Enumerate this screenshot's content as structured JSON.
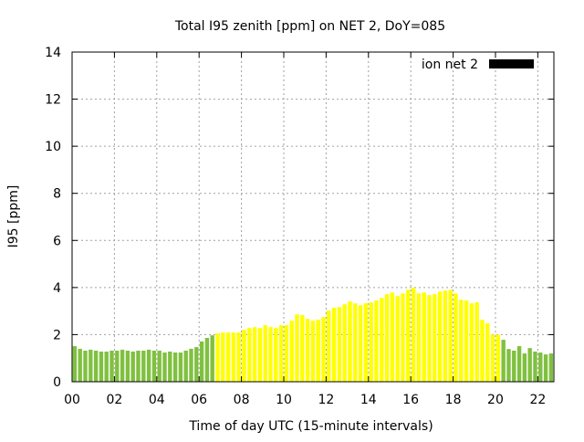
{
  "chart_data": {
    "type": "bar",
    "title": "Total I95 zenith [ppm] on NET 2, DoY=085",
    "xlabel": "Time of day UTC (15-minute intervals)",
    "ylabel": "I95 [ppm]",
    "xlim": [
      0,
      22.76
    ],
    "ylim": [
      0,
      14
    ],
    "grid": true,
    "x_ticks": [
      "00",
      "02",
      "04",
      "06",
      "08",
      "10",
      "12",
      "14",
      "16",
      "18",
      "20",
      "22"
    ],
    "y_ticks": [
      "0",
      "2",
      "4",
      "6",
      "8",
      "10",
      "12",
      "14"
    ],
    "legend": {
      "label": "ion net 2",
      "placement": "top-right",
      "color": "#000000"
    },
    "bar_interval_hours": 0.25,
    "yellow_threshold": 2.0,
    "colors": {
      "low": "#80c040",
      "high": "#ffff00"
    },
    "series": [
      {
        "name": "ion net 2",
        "values": [
          1.51,
          1.4,
          1.32,
          1.36,
          1.32,
          1.28,
          1.28,
          1.32,
          1.32,
          1.36,
          1.32,
          1.28,
          1.32,
          1.32,
          1.36,
          1.32,
          1.32,
          1.24,
          1.28,
          1.24,
          1.24,
          1.32,
          1.4,
          1.47,
          1.71,
          1.86,
          1.97,
          2.05,
          2.09,
          2.09,
          2.09,
          2.09,
          2.21,
          2.28,
          2.32,
          2.28,
          2.4,
          2.32,
          2.28,
          2.4,
          2.4,
          2.59,
          2.86,
          2.83,
          2.67,
          2.59,
          2.63,
          2.75,
          3.02,
          3.14,
          3.17,
          3.29,
          3.41,
          3.33,
          3.25,
          3.33,
          3.37,
          3.45,
          3.56,
          3.72,
          3.79,
          3.64,
          3.75,
          3.9,
          3.99,
          3.75,
          3.79,
          3.68,
          3.72,
          3.83,
          3.87,
          3.9,
          3.75,
          3.48,
          3.45,
          3.33,
          3.37,
          2.63,
          2.48,
          2.0,
          2.0,
          1.78,
          1.39,
          1.32,
          1.51,
          1.2,
          1.43,
          1.28,
          1.24,
          1.16,
          1.2,
          1.28
        ]
      }
    ]
  }
}
